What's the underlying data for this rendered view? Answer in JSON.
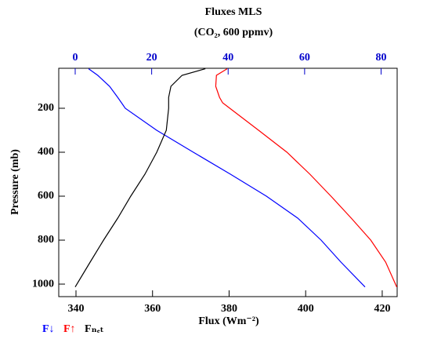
{
  "chart_data": {
    "type": "line",
    "title": "Fluxes MLS",
    "subtitle": "(CO₂, 600 ppmv)",
    "xlabel": "Flux (Wm⁻²)",
    "ylabel": "Pressure (mb)",
    "y": [
      20,
      50,
      100,
      150,
      175,
      200,
      300,
      400,
      500,
      600,
      700,
      800,
      900,
      1013
    ],
    "xlim": [
      335.5,
      423.9
    ],
    "xticks": [
      340,
      360,
      380,
      400,
      420
    ],
    "x2lim": [
      -4.3,
      84.2
    ],
    "x2ticks": [
      0,
      20,
      40,
      60,
      80
    ],
    "x2color": "#0000cc",
    "ylim": [
      1057,
      18
    ],
    "yticks": [
      200,
      400,
      600,
      800,
      1000
    ],
    "series": [
      {
        "name": "F↓",
        "color": "#0000ff",
        "axis": "x2",
        "values": [
          3.5,
          5.9,
          9.0,
          11.1,
          12.1,
          13.1,
          21.3,
          30.9,
          40.6,
          50.0,
          58.2,
          64.3,
          69.5,
          75.8
        ]
      },
      {
        "name": "F↑",
        "color": "#ff0000",
        "values": [
          379.5,
          376.7,
          376.5,
          377.5,
          378.3,
          380.2,
          387.7,
          395.1,
          401.1,
          406.6,
          411.9,
          417.0,
          420.9,
          423.8
        ]
      },
      {
        "name": "Fₙₑₜ",
        "color": "#000000",
        "values": [
          373.8,
          367.7,
          364.8,
          364.2,
          364.2,
          364.2,
          363.6,
          361.1,
          358.0,
          354.3,
          350.9,
          347.2,
          343.7,
          339.8
        ]
      }
    ]
  }
}
